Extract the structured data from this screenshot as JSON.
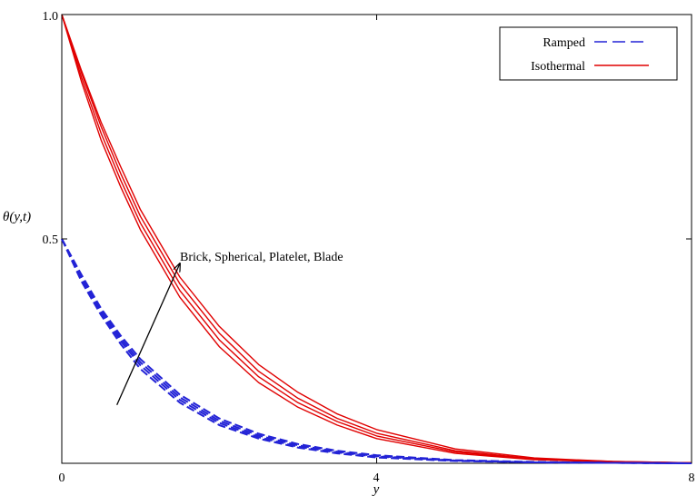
{
  "chart_data": {
    "type": "line",
    "xlabel": "y",
    "ylabel": "θ(y,t)",
    "xlim": [
      0,
      8
    ],
    "ylim": [
      0,
      1
    ],
    "x_ticks": [
      "0",
      "4",
      "8"
    ],
    "y_ticks": [
      "1.0",
      "0.5"
    ],
    "grid": false,
    "legend_position": "top-right",
    "legend": [
      {
        "label": "Ramped",
        "color": "#2323d6",
        "dash": "dashed"
      },
      {
        "label": "Isothermal",
        "color": "#e00000",
        "dash": "solid"
      }
    ],
    "annotation": {
      "text": "Brick, Spherical, Platelet, Blade",
      "arrow_from": [
        0.7,
        0.13
      ],
      "arrow_to": [
        1.5,
        0.445
      ]
    },
    "x": [
      0,
      0.25,
      0.5,
      0.75,
      1,
      1.5,
      2,
      2.5,
      3,
      3.5,
      4,
      5,
      6,
      7,
      8
    ],
    "series": [
      {
        "group": "Isothermal",
        "values": [
          1.0,
          0.85,
          0.72,
          0.615,
          0.52,
          0.37,
          0.26,
          0.18,
          0.125,
          0.085,
          0.055,
          0.022,
          0.008,
          0.003,
          0.001
        ]
      },
      {
        "group": "Isothermal",
        "values": [
          1.0,
          0.86,
          0.735,
          0.63,
          0.535,
          0.385,
          0.275,
          0.193,
          0.135,
          0.093,
          0.061,
          0.025,
          0.009,
          0.003,
          0.001
        ]
      },
      {
        "group": "Isothermal",
        "values": [
          1.0,
          0.87,
          0.75,
          0.645,
          0.55,
          0.4,
          0.29,
          0.205,
          0.145,
          0.1,
          0.067,
          0.028,
          0.01,
          0.004,
          0.001
        ]
      },
      {
        "group": "Isothermal",
        "values": [
          1.0,
          0.875,
          0.76,
          0.66,
          0.565,
          0.415,
          0.305,
          0.22,
          0.158,
          0.11,
          0.075,
          0.032,
          0.012,
          0.004,
          0.001
        ]
      },
      {
        "group": "Ramped",
        "values": [
          0.5,
          0.405,
          0.33,
          0.265,
          0.21,
          0.135,
          0.085,
          0.055,
          0.035,
          0.022,
          0.013,
          0.005,
          0.002,
          0.001,
          0.0
        ]
      },
      {
        "group": "Ramped",
        "values": [
          0.5,
          0.41,
          0.335,
          0.272,
          0.218,
          0.141,
          0.09,
          0.058,
          0.037,
          0.024,
          0.015,
          0.006,
          0.002,
          0.001,
          0.0
        ]
      },
      {
        "group": "Ramped",
        "values": [
          0.5,
          0.415,
          0.34,
          0.278,
          0.225,
          0.147,
          0.095,
          0.062,
          0.04,
          0.026,
          0.016,
          0.006,
          0.002,
          0.001,
          0.0
        ]
      },
      {
        "group": "Ramped",
        "values": [
          0.5,
          0.42,
          0.345,
          0.284,
          0.232,
          0.153,
          0.1,
          0.066,
          0.043,
          0.028,
          0.018,
          0.007,
          0.003,
          0.001,
          0.0
        ]
      }
    ]
  }
}
